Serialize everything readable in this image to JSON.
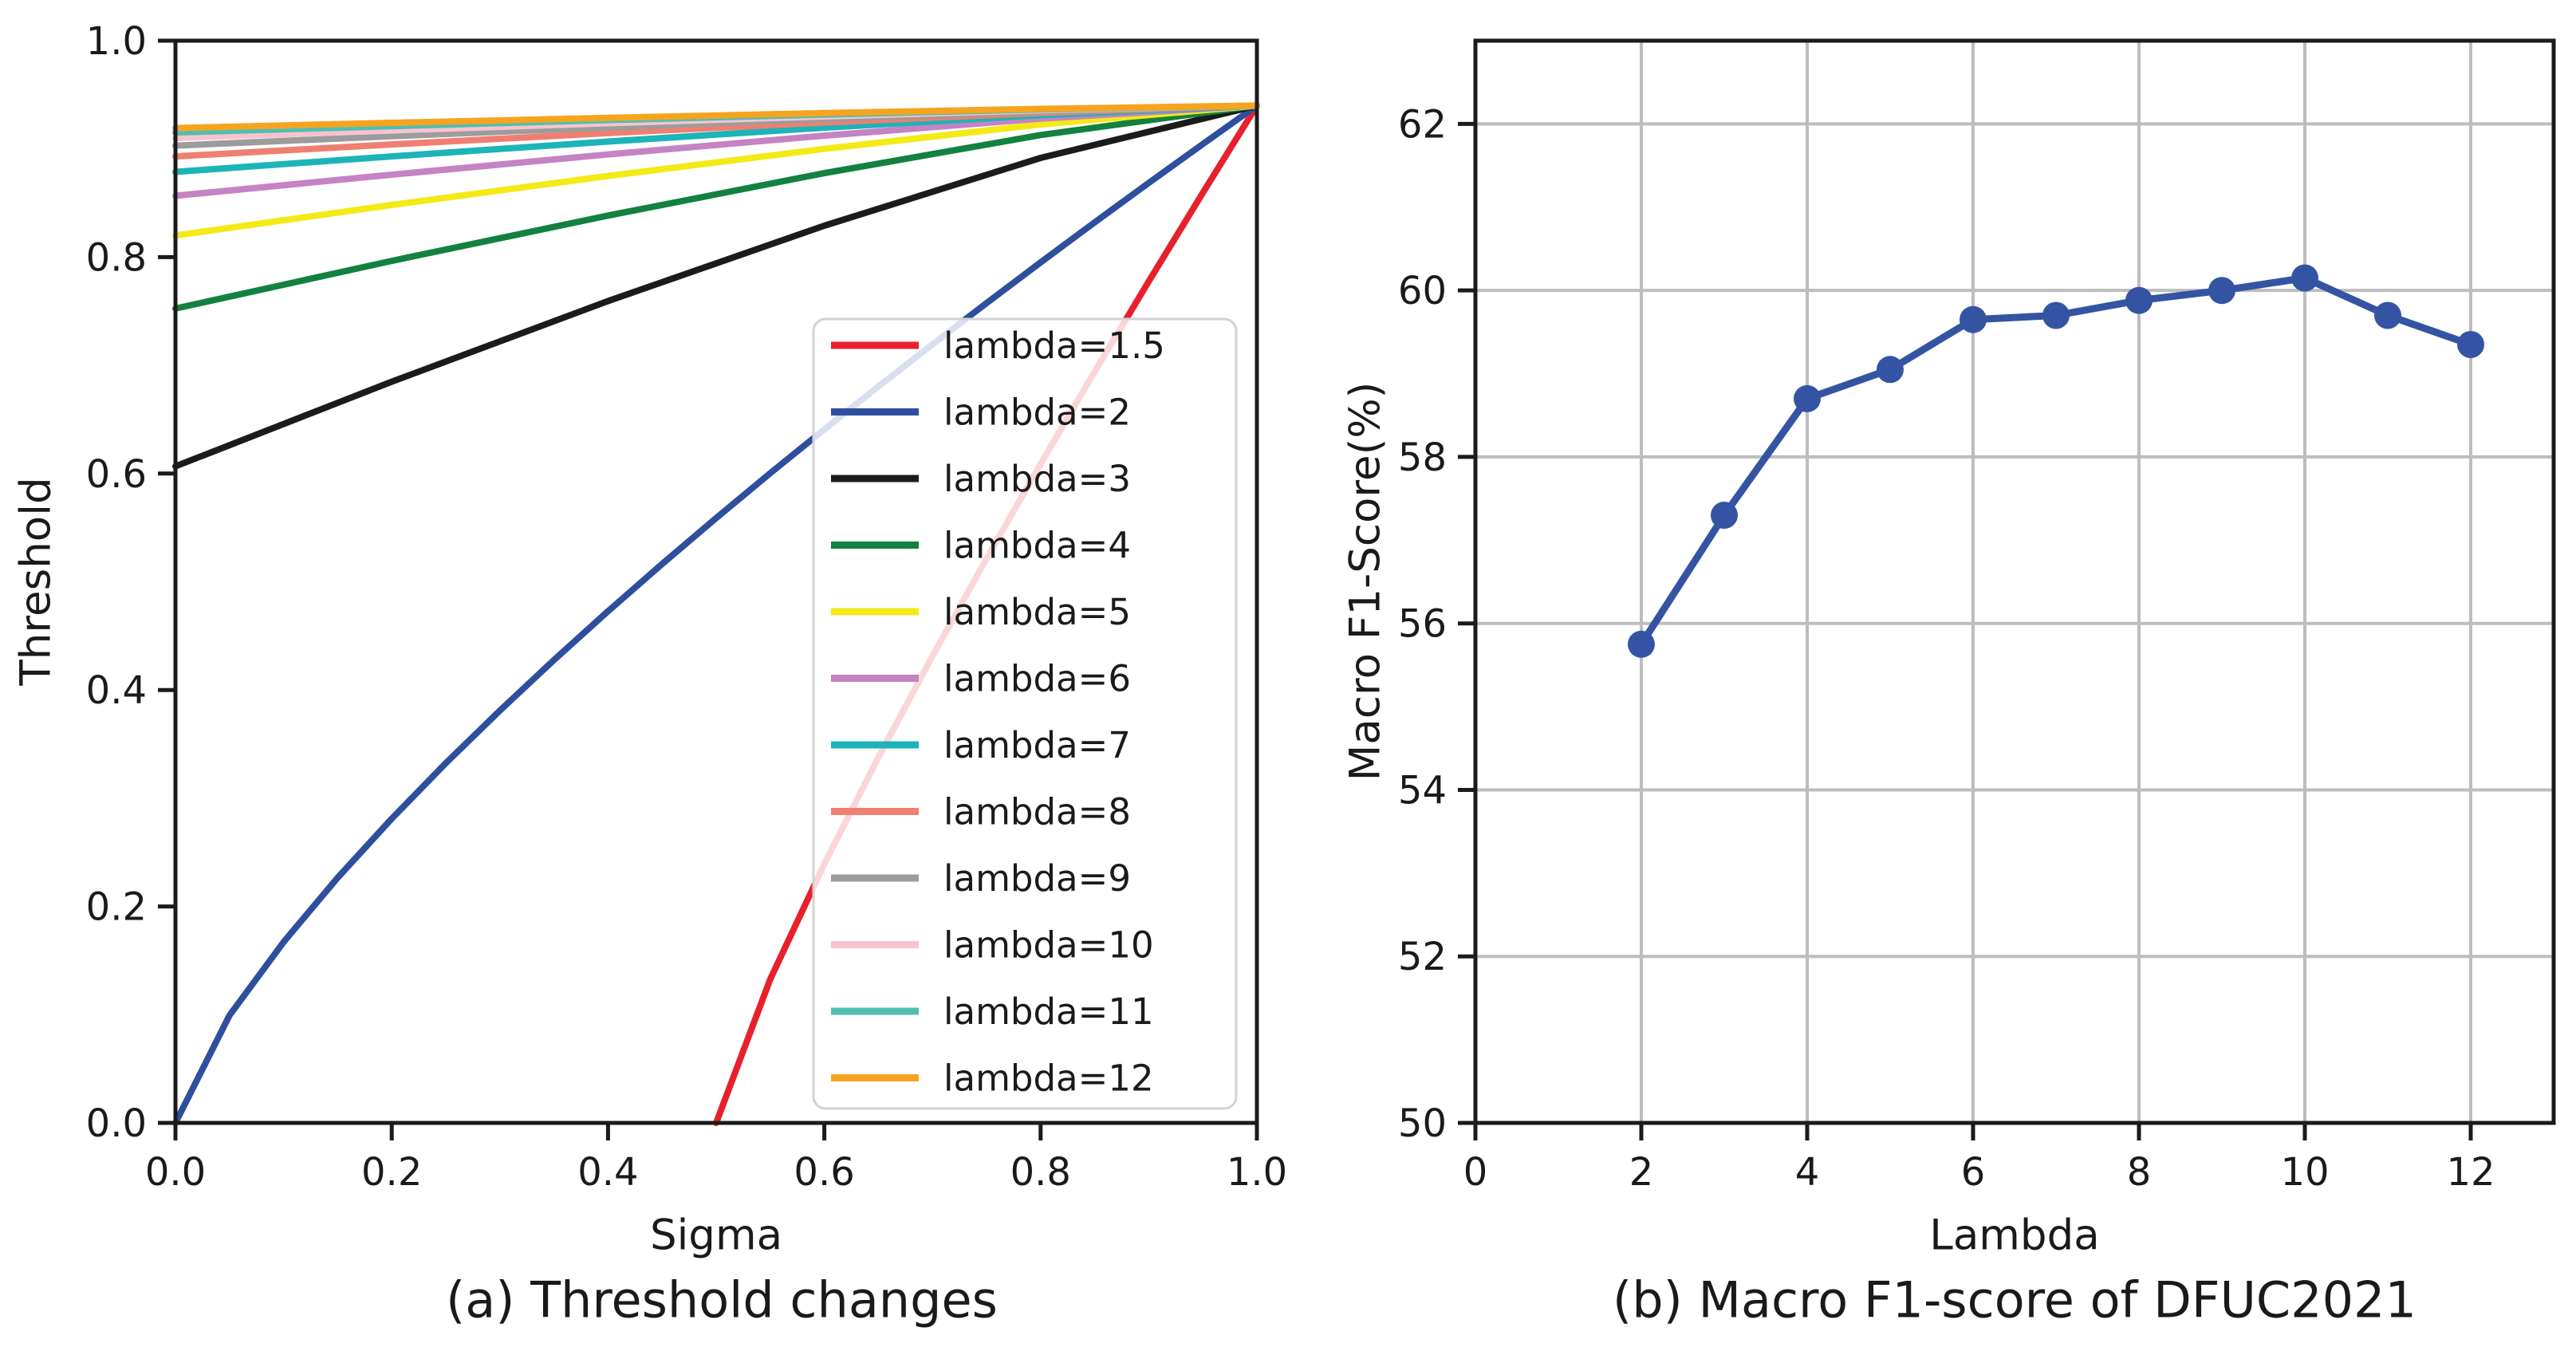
{
  "chart_data": [
    {
      "type": "line",
      "caption": "(a) Threshold changes",
      "xlabel": "Sigma",
      "ylabel": "Threshold",
      "xlim": [
        0.0,
        1.0
      ],
      "ylim": [
        0.0,
        1.0
      ],
      "xticks": {
        "values": [
          0.0,
          0.2,
          0.4,
          0.6,
          0.8,
          1.0
        ],
        "labels": [
          "0.0",
          "0.2",
          "0.4",
          "0.6",
          "0.8",
          "1.0"
        ]
      },
      "yticks": {
        "values": [
          0.0,
          0.2,
          0.4,
          0.6,
          0.8,
          1.0
        ],
        "labels": [
          "0.0",
          "0.2",
          "0.4",
          "0.6",
          "0.8",
          "1.0"
        ]
      },
      "grid": false,
      "legend_position": "center-right",
      "convergence_point": [
        1.0,
        0.94
      ],
      "series": [
        {
          "name": "lambda=1.5",
          "color": "#e8202b",
          "points": [
            [
              0.5,
              0
            ],
            [
              0.55,
              0.1328
            ],
            [
              0.6,
              0.2393
            ],
            [
              0.65,
              0.3378
            ],
            [
              0.7,
              0.4314
            ],
            [
              0.75,
              0.5215
            ],
            [
              0.8,
              0.6089
            ],
            [
              0.85,
              0.6942
            ],
            [
              0.9,
              0.7776
            ],
            [
              0.95,
              0.8594
            ],
            [
              1,
              0.94
            ]
          ]
        },
        {
          "name": "lambda=2",
          "color": "#2d4f9e",
          "points": [
            [
              0,
              0
            ],
            [
              0.05,
              0.0994
            ],
            [
              0.1,
              0.1671
            ],
            [
              0.15,
              0.2266
            ],
            [
              0.2,
              0.2811
            ],
            [
              0.25,
              0.3324
            ],
            [
              0.3,
              0.381
            ],
            [
              0.35,
              0.4277
            ],
            [
              0.4,
              0.4728
            ],
            [
              0.45,
              0.5164
            ],
            [
              0.5,
              0.5589
            ],
            [
              0.55,
              0.6004
            ],
            [
              0.6,
              0.6408
            ],
            [
              0.65,
              0.6805
            ],
            [
              0.7,
              0.7194
            ],
            [
              0.75,
              0.7575
            ],
            [
              0.8,
              0.7951
            ],
            [
              0.85,
              0.8321
            ],
            [
              0.9,
              0.8686
            ],
            [
              0.95,
              0.9045
            ],
            [
              1,
              0.94
            ]
          ]
        },
        {
          "name": "lambda=3",
          "color": "#1b1b1b",
          "points": [
            [
              0,
              0.6067
            ],
            [
              0.2,
              0.6849
            ],
            [
              0.4,
              0.7594
            ],
            [
              0.6,
              0.829
            ],
            [
              0.8,
              0.8917
            ],
            [
              1,
              0.94
            ]
          ]
        },
        {
          "name": "lambda=4",
          "color": "#13813f",
          "points": [
            [
              0,
              0.7525
            ],
            [
              0.2,
              0.7965
            ],
            [
              0.4,
              0.8384
            ],
            [
              0.6,
              0.8776
            ],
            [
              0.8,
              0.9128
            ],
            [
              1,
              0.94
            ]
          ]
        },
        {
          "name": "lambda=5",
          "color": "#f3ea16",
          "points": [
            [
              0,
              0.82
            ],
            [
              0.2,
              0.8482
            ],
            [
              0.4,
              0.875
            ],
            [
              0.6,
              0.9
            ],
            [
              0.8,
              0.9226
            ],
            [
              1,
              0.94
            ]
          ]
        },
        {
          "name": "lambda=6",
          "color": "#c583c3",
          "points": [
            [
              0,
              0.8567
            ],
            [
              0.2,
              0.8762
            ],
            [
              0.4,
              0.8949
            ],
            [
              0.6,
              0.9122
            ],
            [
              0.8,
              0.9279
            ],
            [
              1,
              0.94
            ]
          ]
        },
        {
          "name": "lambda=7",
          "color": "#1cb4b8",
          "points": [
            [
              0,
              0.8788
            ],
            [
              0.2,
              0.8931
            ],
            [
              0.4,
              0.9068
            ],
            [
              0.6,
              0.9196
            ],
            [
              0.8,
              0.9311
            ],
            [
              1,
              0.94
            ]
          ]
        },
        {
          "name": "lambda=8",
          "color": "#ef7f70",
          "points": [
            [
              0,
              0.8931
            ],
            [
              0.2,
              0.9041
            ],
            [
              0.4,
              0.9146
            ],
            [
              0.6,
              0.9244
            ],
            [
              0.8,
              0.9332
            ],
            [
              1,
              0.94
            ]
          ]
        },
        {
          "name": "lambda=9",
          "color": "#9c9c9c",
          "points": [
            [
              0,
              0.903
            ],
            [
              0.2,
              0.9117
            ],
            [
              0.4,
              0.9199
            ],
            [
              0.6,
              0.9277
            ],
            [
              0.8,
              0.9346
            ],
            [
              1,
              0.94
            ]
          ]
        },
        {
          "name": "lambda=10",
          "color": "#f8c3cf",
          "points": [
            [
              0,
              0.91
            ],
            [
              0.2,
              0.917
            ],
            [
              0.4,
              0.9237
            ],
            [
              0.6,
              0.93
            ],
            [
              0.8,
              0.9357
            ],
            [
              1,
              0.94
            ]
          ]
        },
        {
          "name": "lambda=11",
          "color": "#4fbfb2",
          "points": [
            [
              0,
              0.9152
            ],
            [
              0.2,
              0.921
            ],
            [
              0.4,
              0.9266
            ],
            [
              0.6,
              0.9317
            ],
            [
              0.8,
              0.9364
            ],
            [
              1,
              0.94
            ]
          ]
        },
        {
          "name": "lambda=12",
          "color": "#f6a41f",
          "points": [
            [
              0,
              0.9192
            ],
            [
              0.2,
              0.9241
            ],
            [
              0.4,
              0.9287
            ],
            [
              0.6,
              0.9331
            ],
            [
              0.8,
              0.937
            ],
            [
              1,
              0.94
            ]
          ]
        }
      ],
      "legend": {
        "entries": [
          "lambda=1.5",
          "lambda=2",
          "lambda=3",
          "lambda=4",
          "lambda=5",
          "lambda=6",
          "lambda=7",
          "lambda=8",
          "lambda=9",
          "lambda=10",
          "lambda=11",
          "lambda=12"
        ],
        "frame_color": "#d2d2d2",
        "background": "rgba(255,255,255,0.82)"
      }
    },
    {
      "type": "line",
      "caption": "(b) Macro F1-score of DFUC2021",
      "xlabel": "Lambda",
      "ylabel": "Macro F1-Score(%)",
      "xlim": [
        0,
        13
      ],
      "ylim": [
        50,
        63
      ],
      "xticks": {
        "values": [
          0,
          2,
          4,
          6,
          8,
          10,
          12
        ],
        "labels": [
          "0",
          "2",
          "4",
          "6",
          "8",
          "10",
          "12"
        ]
      },
      "yticks": {
        "values": [
          50,
          52,
          54,
          56,
          58,
          60,
          62
        ],
        "labels": [
          "50",
          "52",
          "54",
          "56",
          "58",
          "60",
          "62"
        ]
      },
      "grid": true,
      "grid_color": "#bdbdbd",
      "series": [
        {
          "name": "Macro F1-score",
          "color": "#3454a3",
          "markers": true,
          "x": [
            2,
            3,
            4,
            5,
            6,
            7,
            8,
            9,
            10,
            11,
            12
          ],
          "y": [
            55.75,
            57.3,
            58.7,
            59.05,
            59.65,
            59.7,
            59.88,
            60.0,
            60.15,
            59.7,
            59.35
          ]
        }
      ]
    }
  ]
}
